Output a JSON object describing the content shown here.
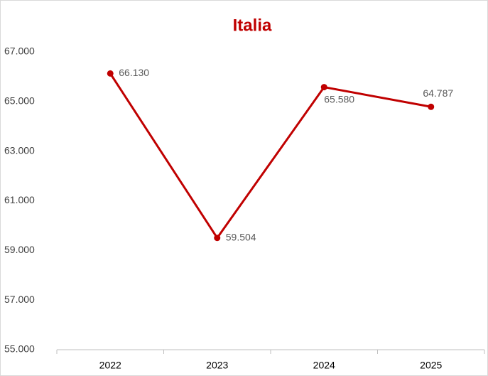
{
  "chart_data": {
    "type": "line",
    "title": "Italia",
    "categories": [
      "2022",
      "2023",
      "2024",
      "2025"
    ],
    "series": [
      {
        "name": "Italia",
        "color": "#c00000",
        "values": [
          66130,
          59504,
          65580,
          64787
        ],
        "value_labels": [
          "66.130",
          "59.504",
          "65.580",
          "64.787"
        ]
      }
    ],
    "ylim": [
      55000,
      67000
    ],
    "yticks": [
      {
        "value": 55000,
        "label": "55.000"
      },
      {
        "value": 57000,
        "label": "57.000"
      },
      {
        "value": 59000,
        "label": "59.000"
      },
      {
        "value": 61000,
        "label": "61.000"
      },
      {
        "value": 63000,
        "label": "63.000"
      },
      {
        "value": 65000,
        "label": "65.000"
      },
      {
        "value": 67000,
        "label": "67.000"
      }
    ],
    "grid": false
  }
}
